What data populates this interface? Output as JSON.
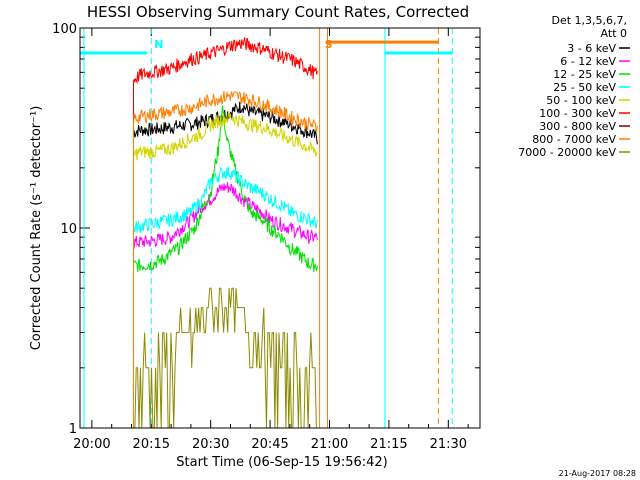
{
  "chart_data": {
    "type": "line",
    "title": "HESSI Observing Summary Count Rates, Corrected",
    "xlabel": "Start Time (06-Sep-15 19:56:42)",
    "ylabel": "Corrected Count Rate (s⁻¹ detector⁻¹)",
    "y_scale": "log",
    "ylim": [
      1,
      100
    ],
    "xlim_minutes": [
      -3,
      98
    ],
    "x_ticks": [
      {
        "t": 0,
        "label": "20:00"
      },
      {
        "t": 15,
        "label": "20:15"
      },
      {
        "t": 30,
        "label": "20:30"
      },
      {
        "t": 45,
        "label": "20:45"
      },
      {
        "t": 60,
        "label": "21:00"
      },
      {
        "t": 75,
        "label": "21:15"
      },
      {
        "t": 90,
        "label": "21:30"
      }
    ],
    "y_ticks": [
      {
        "v": 1,
        "label": "1"
      },
      {
        "v": 10,
        "label": "10"
      },
      {
        "v": 100,
        "label": "100"
      }
    ],
    "legend": {
      "header": [
        "Det 1,3,5,6,7,",
        "Att 0"
      ],
      "placement": "right"
    },
    "series": [
      {
        "name": "3 - 6 keV",
        "color": "#000000",
        "points": [
          [
            10.5,
            30
          ],
          [
            12,
            31
          ],
          [
            15,
            31
          ],
          [
            20,
            32
          ],
          [
            25,
            33
          ],
          [
            30,
            35
          ],
          [
            35,
            38
          ],
          [
            38,
            41
          ],
          [
            40,
            38
          ],
          [
            45,
            36
          ],
          [
            50,
            33
          ],
          [
            55,
            30
          ],
          [
            57,
            28
          ]
        ]
      },
      {
        "name": "6 - 12 keV",
        "color": "#ff00ff",
        "points": [
          [
            10.5,
            8.5
          ],
          [
            12,
            8.5
          ],
          [
            15,
            8.6
          ],
          [
            20,
            9
          ],
          [
            25,
            11
          ],
          [
            28,
            13
          ],
          [
            30,
            14
          ],
          [
            33,
            16
          ],
          [
            35,
            16
          ],
          [
            38,
            14
          ],
          [
            40,
            13
          ],
          [
            43,
            12
          ],
          [
            45,
            11
          ],
          [
            50,
            10
          ],
          [
            55,
            9
          ],
          [
            57,
            9
          ]
        ]
      },
      {
        "name": "12 - 25 keV",
        "color": "#00e000",
        "points": [
          [
            10.5,
            6.5
          ],
          [
            12,
            6.5
          ],
          [
            15,
            6.6
          ],
          [
            18,
            7
          ],
          [
            22,
            8
          ],
          [
            26,
            10
          ],
          [
            30,
            15
          ],
          [
            32,
            25
          ],
          [
            33,
            40
          ],
          [
            34,
            28
          ],
          [
            36,
            20
          ],
          [
            38,
            15
          ],
          [
            40,
            12
          ],
          [
            43,
            11
          ],
          [
            45,
            10
          ],
          [
            48,
            9
          ],
          [
            50,
            8
          ],
          [
            55,
            6.6
          ],
          [
            57,
            6.5
          ]
        ]
      },
      {
        "name": "25 - 50 keV",
        "color": "#00ffff",
        "points": [
          [
            10.5,
            10
          ],
          [
            12,
            10.2
          ],
          [
            15,
            10.5
          ],
          [
            20,
            11
          ],
          [
            25,
            12
          ],
          [
            28,
            14
          ],
          [
            30,
            17
          ],
          [
            33,
            19
          ],
          [
            35,
            19
          ],
          [
            38,
            17
          ],
          [
            40,
            16
          ],
          [
            43,
            15
          ],
          [
            45,
            14
          ],
          [
            48,
            13
          ],
          [
            50,
            12
          ],
          [
            55,
            11
          ],
          [
            57,
            10.5
          ]
        ]
      },
      {
        "name": "50 - 100 keV",
        "color": "#d4d400",
        "points": [
          [
            10.5,
            23
          ],
          [
            12,
            24
          ],
          [
            15,
            24
          ],
          [
            20,
            25
          ],
          [
            25,
            28
          ],
          [
            28,
            30
          ],
          [
            30,
            33
          ],
          [
            33,
            35
          ],
          [
            35,
            36
          ],
          [
            38,
            34
          ],
          [
            40,
            33
          ],
          [
            43,
            32
          ],
          [
            45,
            31
          ],
          [
            48,
            29
          ],
          [
            50,
            28
          ],
          [
            55,
            25
          ],
          [
            57,
            24
          ]
        ]
      },
      {
        "name": "100 - 300 keV",
        "color": "#ff0000",
        "points": [
          [
            10.5,
            55
          ],
          [
            12,
            58
          ],
          [
            15,
            60
          ],
          [
            20,
            63
          ],
          [
            25,
            70
          ],
          [
            28,
            72
          ],
          [
            30,
            75
          ],
          [
            33,
            78
          ],
          [
            35,
            82
          ],
          [
            38,
            84
          ],
          [
            40,
            82
          ],
          [
            43,
            79
          ],
          [
            45,
            76
          ],
          [
            48,
            72
          ],
          [
            50,
            70
          ],
          [
            55,
            62
          ],
          [
            57,
            58
          ]
        ]
      },
      {
        "name": "300 - 800 keV",
        "color": "#800000",
        "points": []
      },
      {
        "name": "800 - 7000 keV",
        "color": "#ff7f00",
        "points": [
          [
            10.5,
            35
          ],
          [
            12,
            36
          ],
          [
            15,
            37
          ],
          [
            20,
            38
          ],
          [
            25,
            40
          ],
          [
            28,
            42
          ],
          [
            30,
            44
          ],
          [
            33,
            45
          ],
          [
            35,
            46
          ],
          [
            38,
            45
          ],
          [
            40,
            44
          ],
          [
            43,
            42
          ],
          [
            45,
            40
          ],
          [
            48,
            38
          ],
          [
            50,
            36
          ],
          [
            55,
            33
          ],
          [
            57,
            32
          ]
        ]
      },
      {
        "name": "7000 - 20000 keV",
        "color": "#8b8b00",
        "points": [
          [
            10.5,
            1.5
          ],
          [
            12,
            1.8
          ],
          [
            15,
            1.8
          ],
          [
            18,
            2
          ],
          [
            20,
            2
          ],
          [
            22,
            2.5
          ],
          [
            25,
            3
          ],
          [
            28,
            3.5
          ],
          [
            30,
            4
          ],
          [
            33,
            4.2
          ],
          [
            35,
            4
          ],
          [
            38,
            3.6
          ],
          [
            40,
            3
          ],
          [
            43,
            2.5
          ],
          [
            45,
            2.3
          ],
          [
            48,
            2
          ],
          [
            50,
            1.8
          ],
          [
            55,
            1.6
          ],
          [
            57,
            1.5
          ]
        ]
      }
    ],
    "annotations": [
      {
        "label": "N",
        "t": 15
      },
      {
        "label": "S",
        "t": 58
      }
    ],
    "vertical_lines": [
      {
        "t": -2,
        "color": "#00ffff",
        "style": "solid"
      },
      {
        "t": 15,
        "color": "#00ffff",
        "style": "dashed"
      },
      {
        "t": 57.5,
        "color": "#ff7f00",
        "style": "solid"
      },
      {
        "t": 59.5,
        "color": "#ff7f00",
        "style": "solid"
      },
      {
        "t": 74,
        "color": "#00ffff",
        "style": "solid"
      },
      {
        "t": 87.5,
        "color": "#ff7f00",
        "style": "dashed"
      },
      {
        "t": 91,
        "color": "#00ffff",
        "style": "dashed"
      }
    ],
    "horizontal_bars": [
      {
        "t0": -3,
        "t1": 14,
        "v": 75,
        "color": "#00ffff"
      },
      {
        "t0": 59.5,
        "t1": 87.5,
        "v": 85,
        "color": "#ff7f00"
      },
      {
        "t0": 74,
        "t1": 91,
        "v": 75,
        "color": "#00ffff"
      }
    ],
    "grid": false
  },
  "footer": {
    "date": "21-Aug-2017 08:28"
  }
}
